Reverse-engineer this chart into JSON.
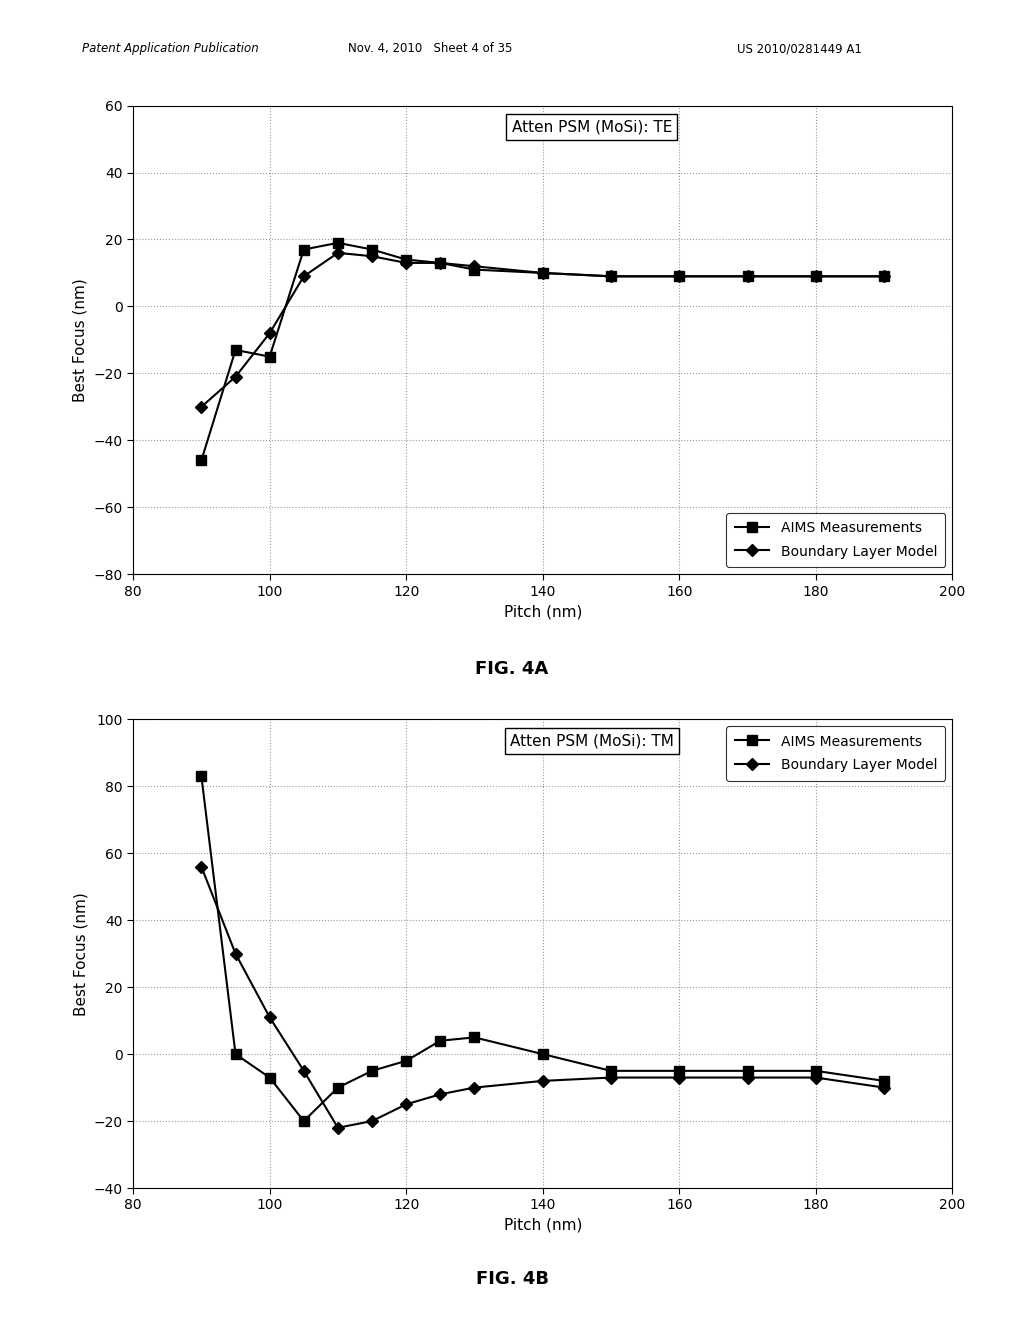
{
  "fig4a": {
    "title": "Atten PSM (MoSi): TE",
    "xlabel": "Pitch (nm)",
    "ylabel": "Best Focus (nm)",
    "figname": "FIG. 4A",
    "xlim": [
      80,
      200
    ],
    "ylim": [
      -80,
      60
    ],
    "xticks": [
      80,
      100,
      120,
      140,
      160,
      180,
      200
    ],
    "yticks": [
      -80,
      -60,
      -40,
      -20,
      0,
      20,
      40,
      60
    ],
    "aims_x": [
      90,
      95,
      100,
      105,
      110,
      115,
      120,
      125,
      130,
      140,
      150,
      160,
      170,
      180,
      190
    ],
    "aims_y": [
      -46,
      -13,
      -15,
      17,
      19,
      17,
      14,
      13,
      11,
      10,
      9,
      9,
      9,
      9,
      9
    ],
    "blm_x": [
      90,
      95,
      100,
      105,
      110,
      115,
      120,
      125,
      130,
      140,
      150,
      160,
      170,
      180,
      190
    ],
    "blm_y": [
      -30,
      -21,
      -8,
      9,
      16,
      15,
      13,
      13,
      12,
      10,
      9,
      9,
      9,
      9,
      9
    ],
    "legend_loc": "lower right"
  },
  "fig4b": {
    "title": "Atten PSM (MoSi): TM",
    "xlabel": "Pitch (nm)",
    "ylabel": "Best Focus (nm)",
    "figname": "FIG. 4B",
    "xlim": [
      80,
      200
    ],
    "ylim": [
      -40,
      100
    ],
    "xticks": [
      80,
      100,
      120,
      140,
      160,
      180,
      200
    ],
    "yticks": [
      -40,
      -20,
      0,
      20,
      40,
      60,
      80,
      100
    ],
    "aims_x": [
      90,
      95,
      100,
      105,
      110,
      115,
      120,
      125,
      130,
      140,
      150,
      160,
      170,
      180,
      190
    ],
    "aims_y": [
      83,
      0,
      -7,
      -20,
      -10,
      -5,
      -2,
      4,
      5,
      0,
      -5,
      -5,
      -5,
      -5,
      -8
    ],
    "blm_x": [
      90,
      95,
      100,
      105,
      110,
      115,
      120,
      125,
      130,
      140,
      150,
      160,
      170,
      180,
      190
    ],
    "blm_y": [
      56,
      30,
      11,
      -5,
      -22,
      -20,
      -15,
      -12,
      -10,
      -8,
      -7,
      -7,
      -7,
      -7,
      -10
    ],
    "legend_loc": "upper right"
  },
  "header_left": "Patent Application Publication",
  "header_mid": "Nov. 4, 2010   Sheet 4 of 35",
  "header_right": "US 2010/0281449 A1",
  "background_color": "#ffffff"
}
